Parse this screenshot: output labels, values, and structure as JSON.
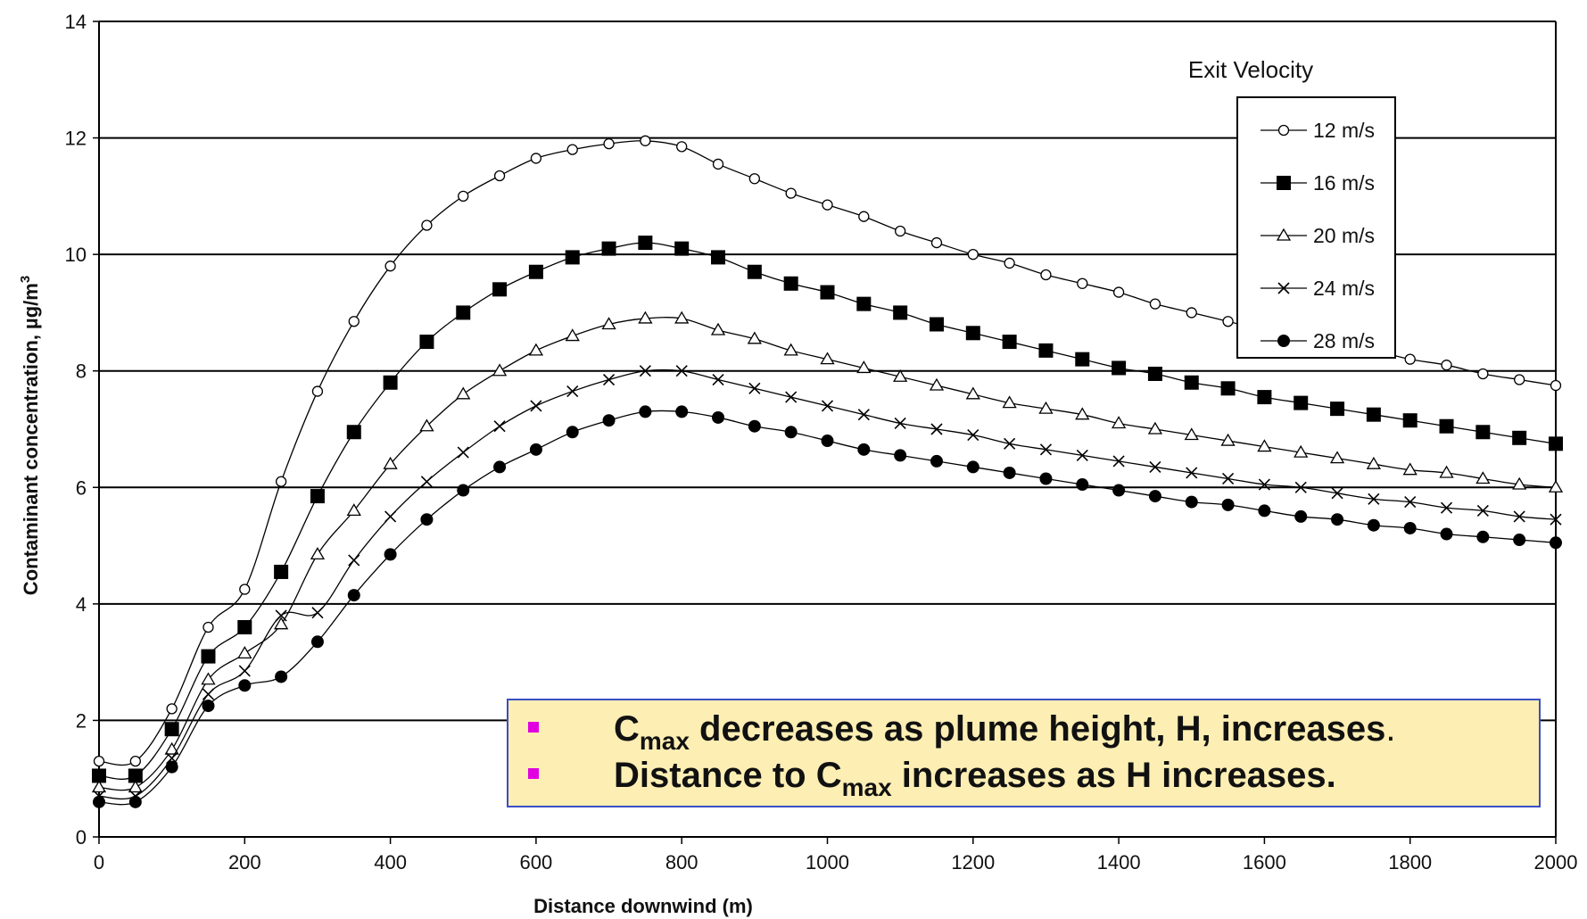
{
  "chart_data": {
    "type": "line",
    "xlabel": "Distance downwind (m)",
    "ylabel": "Contaminant concentration, µg/m",
    "ylabel_sup": "3",
    "xlim": [
      0,
      2000
    ],
    "ylim": [
      0,
      14
    ],
    "xticks": [
      0,
      200,
      400,
      600,
      800,
      1000,
      1200,
      1400,
      1600,
      1800,
      2000
    ],
    "yticks": [
      0,
      2,
      4,
      6,
      8,
      10,
      12,
      14
    ],
    "grid": "horizontal",
    "legend_title": "Exit Velocity",
    "legend_placement": "top-right",
    "x": [
      0,
      50,
      100,
      150,
      200,
      250,
      300,
      350,
      400,
      450,
      500,
      550,
      600,
      650,
      700,
      750,
      800,
      850,
      900,
      950,
      1000,
      1050,
      1100,
      1150,
      1200,
      1250,
      1300,
      1350,
      1400,
      1450,
      1500,
      1550,
      1600,
      1650,
      1700,
      1750,
      1800,
      1850,
      1900,
      1950,
      2000
    ],
    "series": [
      {
        "name": "12 m/s",
        "marker": "open-circle",
        "values": [
          1.3,
          1.3,
          2.2,
          3.6,
          4.25,
          6.1,
          7.65,
          8.85,
          9.8,
          10.5,
          11.0,
          11.35,
          11.65,
          11.8,
          11.9,
          11.95,
          11.85,
          11.55,
          11.3,
          11.05,
          10.85,
          10.65,
          10.4,
          10.2,
          10.0,
          9.85,
          9.65,
          9.5,
          9.35,
          9.15,
          9.0,
          8.85,
          8.7,
          8.6,
          8.45,
          8.35,
          8.2,
          8.1,
          7.95,
          7.85,
          7.75
        ]
      },
      {
        "name": "16 m/s",
        "marker": "filled-square",
        "values": [
          1.05,
          1.05,
          1.85,
          3.1,
          3.6,
          4.55,
          5.85,
          6.95,
          7.8,
          8.5,
          9.0,
          9.4,
          9.7,
          9.95,
          10.1,
          10.2,
          10.1,
          9.95,
          9.7,
          9.5,
          9.35,
          9.15,
          9.0,
          8.8,
          8.65,
          8.5,
          8.35,
          8.2,
          8.05,
          7.95,
          7.8,
          7.7,
          7.55,
          7.45,
          7.35,
          7.25,
          7.15,
          7.05,
          6.95,
          6.85,
          6.75
        ]
      },
      {
        "name": "20 m/s",
        "marker": "open-triangle",
        "values": [
          0.85,
          0.85,
          1.5,
          2.7,
          3.15,
          3.65,
          4.85,
          5.6,
          6.4,
          7.05,
          7.6,
          8.0,
          8.35,
          8.6,
          8.8,
          8.9,
          8.9,
          8.7,
          8.55,
          8.35,
          8.2,
          8.05,
          7.9,
          7.75,
          7.6,
          7.45,
          7.35,
          7.25,
          7.1,
          7.0,
          6.9,
          6.8,
          6.7,
          6.6,
          6.5,
          6.4,
          6.3,
          6.25,
          6.15,
          6.05,
          6.0
        ]
      },
      {
        "name": "24 m/s",
        "marker": "cross",
        "values": [
          0.7,
          0.7,
          1.35,
          2.45,
          2.85,
          3.8,
          3.85,
          4.75,
          5.5,
          6.1,
          6.6,
          7.05,
          7.4,
          7.65,
          7.85,
          8.0,
          8.0,
          7.85,
          7.7,
          7.55,
          7.4,
          7.25,
          7.1,
          7.0,
          6.9,
          6.75,
          6.65,
          6.55,
          6.45,
          6.35,
          6.25,
          6.15,
          6.05,
          6.0,
          5.9,
          5.8,
          5.75,
          5.65,
          5.6,
          5.5,
          5.45
        ]
      },
      {
        "name": "28 m/s",
        "marker": "filled-circle",
        "values": [
          0.6,
          0.6,
          1.2,
          2.25,
          2.6,
          2.75,
          3.35,
          4.15,
          4.85,
          5.45,
          5.95,
          6.35,
          6.65,
          6.95,
          7.15,
          7.3,
          7.3,
          7.2,
          7.05,
          6.95,
          6.8,
          6.65,
          6.55,
          6.45,
          6.35,
          6.25,
          6.15,
          6.05,
          5.95,
          5.85,
          5.75,
          5.7,
          5.6,
          5.5,
          5.45,
          5.35,
          5.3,
          5.2,
          5.15,
          5.1,
          5.05
        ]
      }
    ]
  },
  "annotation": {
    "bullet_color": "#e000e0",
    "box_color": "#fdeeb4",
    "line1_pre": "C",
    "line1_sub": "max",
    "line1_post": " decreases as plume height, H, increases",
    "line1_end": ".",
    "line2_pre": "Distance to C",
    "line2_sub": "max",
    "line2_post": " increases as H increases."
  }
}
